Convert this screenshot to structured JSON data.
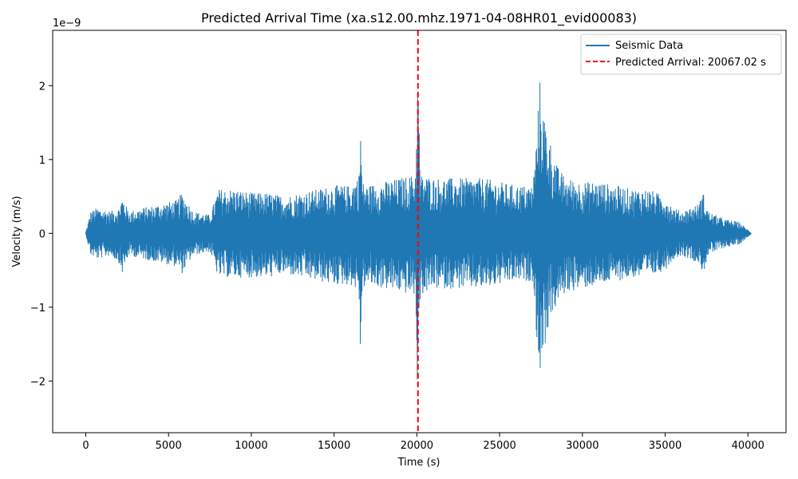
{
  "chart_data": {
    "type": "line",
    "title": "Predicted Arrival Time (xa.s12.00.mhz.1971-04-08HR01_evid00083)",
    "xlabel": "Time (s)",
    "ylabel": "Velocity (m/s)",
    "y_multiplier_label": "1e−9",
    "xlim": [
      -2000,
      42300
    ],
    "ylim": [
      -2.7,
      2.75
    ],
    "x_ticks": [
      0,
      5000,
      10000,
      15000,
      20000,
      25000,
      30000,
      35000,
      40000
    ],
    "x_tick_labels": [
      "0",
      "5000",
      "10000",
      "15000",
      "20000",
      "25000",
      "30000",
      "35000",
      "40000"
    ],
    "y_ticks": [
      -2,
      -1,
      0,
      1,
      2
    ],
    "y_tick_labels": [
      "−2",
      "−1",
      "0",
      "1",
      "2"
    ],
    "grid": false,
    "legend_position": "top-right",
    "series": [
      {
        "name": "Seismic Data",
        "color": "#1f77b4",
        "kind": "waveform-envelope",
        "envelope_x": [
          0,
          300,
          700,
          1500,
          2000,
          2200,
          2600,
          3500,
          4500,
          5500,
          5800,
          6500,
          7500,
          7800,
          8000,
          9000,
          10000,
          11000,
          12000,
          13000,
          14000,
          15000,
          16000,
          16500,
          16600,
          16700,
          17000,
          18000,
          19000,
          19900,
          20067,
          20200,
          21000,
          22000,
          23000,
          24000,
          25000,
          26000,
          27000,
          27300,
          27400,
          27600,
          28000,
          28500,
          29000,
          30000,
          31000,
          32000,
          33000,
          34000,
          35000,
          35500,
          36000,
          37000,
          37300,
          37600,
          38500,
          39500,
          40000,
          40200
        ],
        "envelope_top": [
          0.02,
          0.3,
          0.35,
          0.3,
          0.35,
          0.5,
          0.3,
          0.35,
          0.4,
          0.45,
          0.55,
          0.3,
          0.25,
          0.45,
          0.6,
          0.6,
          0.55,
          0.55,
          0.5,
          0.55,
          0.6,
          0.65,
          0.65,
          0.8,
          1.5,
          0.7,
          0.65,
          0.7,
          0.75,
          0.8,
          2.3,
          0.8,
          0.75,
          0.75,
          0.75,
          0.75,
          0.7,
          0.65,
          0.65,
          1.5,
          2.15,
          1.7,
          1.3,
          0.9,
          0.75,
          0.7,
          0.7,
          0.65,
          0.6,
          0.6,
          0.5,
          0.35,
          0.3,
          0.4,
          0.55,
          0.3,
          0.2,
          0.15,
          0.05,
          0.01
        ],
        "envelope_bottom": [
          -0.02,
          -0.3,
          -0.35,
          -0.3,
          -0.4,
          -0.55,
          -0.3,
          -0.35,
          -0.4,
          -0.45,
          -0.55,
          -0.3,
          -0.25,
          -0.45,
          -0.6,
          -0.6,
          -0.6,
          -0.6,
          -0.55,
          -0.6,
          -0.65,
          -0.7,
          -0.7,
          -0.8,
          -1.75,
          -0.75,
          -0.7,
          -0.75,
          -0.8,
          -0.85,
          -2.45,
          -0.85,
          -0.75,
          -0.75,
          -0.75,
          -0.75,
          -0.7,
          -0.65,
          -0.65,
          -1.6,
          -1.95,
          -1.7,
          -1.2,
          -0.95,
          -0.8,
          -0.75,
          -0.7,
          -0.65,
          -0.6,
          -0.6,
          -0.5,
          -0.35,
          -0.3,
          -0.4,
          -0.55,
          -0.3,
          -0.2,
          -0.15,
          -0.05,
          -0.01
        ]
      },
      {
        "name": "Predicted Arrival: 20067.02 s",
        "color": "#ff0000",
        "kind": "vertical-dashed-line",
        "x": 20067.02
      }
    ]
  }
}
